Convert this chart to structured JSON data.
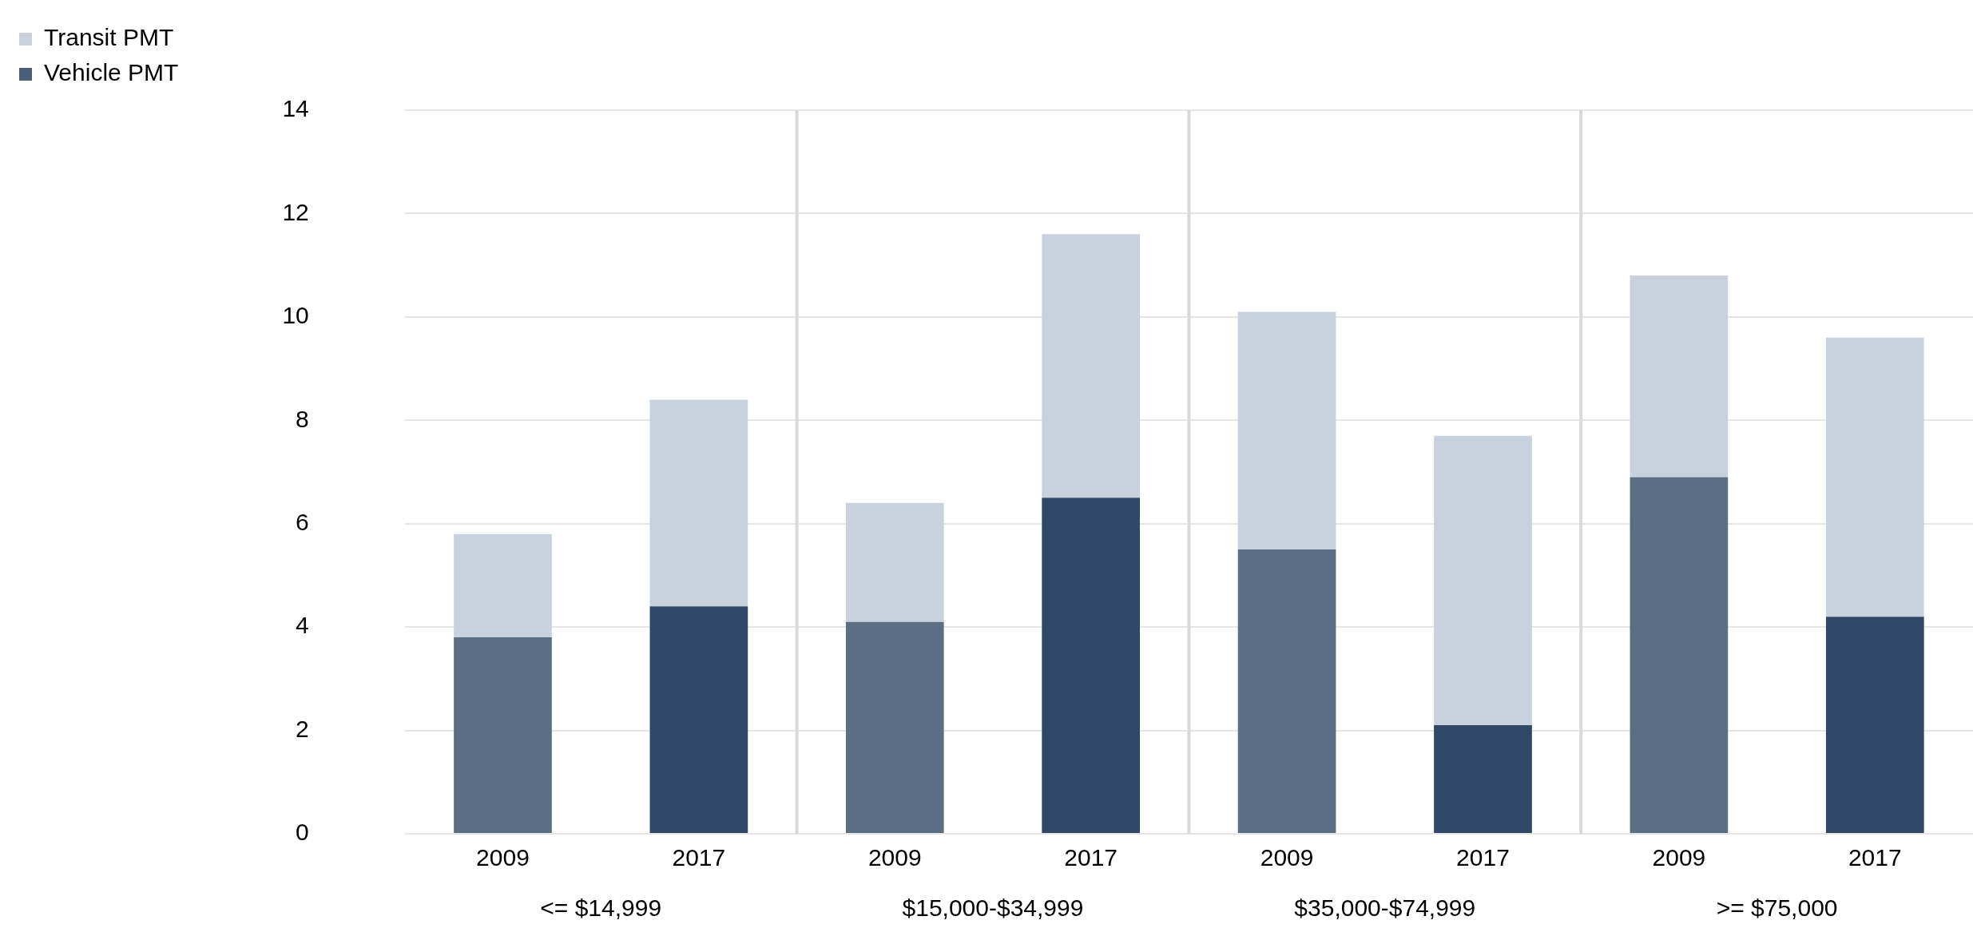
{
  "chart_data": {
    "type": "bar",
    "stacked": true,
    "categories": [
      "2009",
      "2017",
      "2009",
      "2017",
      "2009",
      "2017",
      "2009",
      "2017"
    ],
    "series": [
      {
        "name": "Vehicle PMT",
        "color": "#4a6078",
        "colors": [
          "#5a6e84",
          "#2e4866",
          "#5a6e84",
          "#2e4866",
          "#5a6e84",
          "#2e4866",
          "#5a6e84",
          "#2e4866"
        ],
        "values": [
          3.8,
          4.4,
          4.1,
          6.5,
          5.5,
          2.1,
          6.9,
          4.2
        ]
      },
      {
        "name": "Transit PMT",
        "color": "#c8d2de",
        "values": [
          2.0,
          4.0,
          2.3,
          5.1,
          4.6,
          5.6,
          3.9,
          5.4
        ]
      }
    ],
    "annotations": [
      "<= $14,999",
      "$15,000-$34,999",
      "$35,000-$74,999",
      ">= $75,000"
    ],
    "ylim": [
      0,
      14
    ],
    "yticks": [
      0,
      2,
      4,
      6,
      8,
      10,
      12,
      14
    ],
    "grid": "y",
    "legend": "left"
  }
}
